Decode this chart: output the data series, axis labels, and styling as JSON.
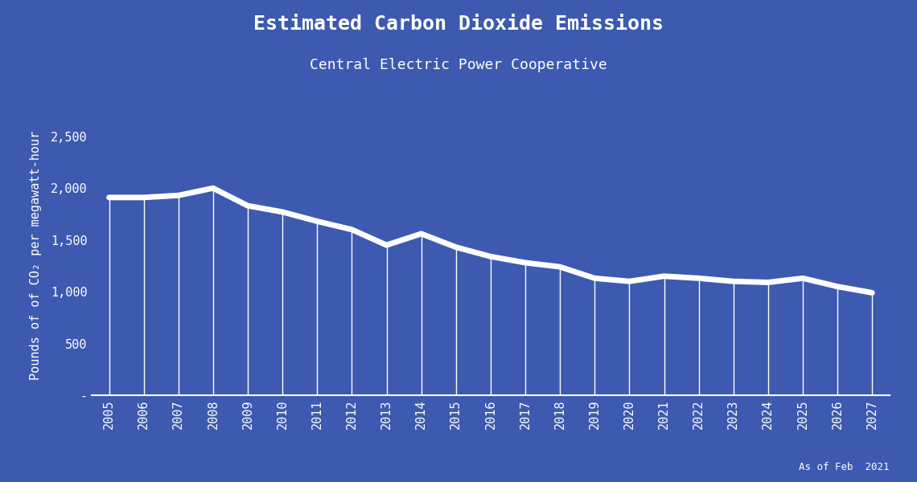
{
  "title": "Estimated Carbon Dioxide Emissions",
  "subtitle": "Central Electric Power Cooperative",
  "footnote": "As of Feb  2021",
  "ylabel": "Pounds of of CO₂ per megawatt-hour",
  "background_color": "#3d5ab0",
  "line_color": "#ffffff",
  "text_color": "#ffffff",
  "years": [
    2005,
    2006,
    2007,
    2008,
    2009,
    2010,
    2011,
    2012,
    2013,
    2014,
    2015,
    2016,
    2017,
    2018,
    2019,
    2020,
    2021,
    2022,
    2023,
    2024,
    2025,
    2026,
    2027
  ],
  "values": [
    1910,
    1910,
    1930,
    2000,
    1830,
    1770,
    1680,
    1600,
    1450,
    1560,
    1430,
    1340,
    1280,
    1240,
    1130,
    1100,
    1150,
    1130,
    1100,
    1090,
    1130,
    1050,
    990
  ],
  "yticks": [
    0,
    500,
    1000,
    1500,
    2000,
    2500
  ],
  "ylim": [
    0,
    2700
  ],
  "vline_color": "#ffffff",
  "title_fontsize": 18,
  "subtitle_fontsize": 13,
  "axis_fontsize": 11,
  "tick_fontsize": 11,
  "footnote_fontsize": 9
}
